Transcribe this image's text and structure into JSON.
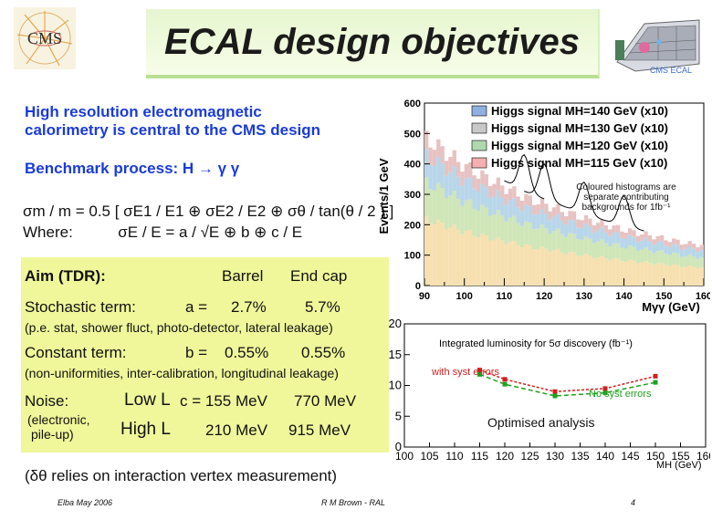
{
  "title": "ECAL design objectives",
  "ecal_caption": "CMS ECAL",
  "logo_text": "CMS",
  "intro": [
    "High resolution electromagnetic",
    "calorimetry is central to the CMS design"
  ],
  "benchmark": "Benchmark process: H → γ γ",
  "formula_line1": "σm / m = 0.5 [ σE1 / E1 ⊕ σE2 / E2 ⊕ σθ / tan(θ / 2 ) ]",
  "formula_where": "Where:",
  "formula_line2": "σE / E = a / √E ⊕  b ⊕ c / E",
  "aim": {
    "label": "Aim (TDR):",
    "barrel": "Barrel",
    "endcap": "End cap",
    "stochastic_label": "Stochastic term:",
    "stochastic_eq": "a =",
    "stochastic_barrel": "2.7%",
    "stochastic_endcap": "5.7%",
    "stochastic_note": "(p.e. stat, shower fluct, photo-detector, lateral leakage)",
    "constant_label": "Constant term:",
    "constant_eq": "b =",
    "constant_barrel": "0.55%",
    "constant_endcap": "0.55%",
    "constant_note": "(non-uniformities, inter-calibration, longitudinal leakage)",
    "noise_label": "Noise:",
    "noise_sub1": "(electronic,",
    "noise_sub2": "pile-up)",
    "low_label": "Low L",
    "low_eq": "c = 155 MeV",
    "low_endcap": "770 MeV",
    "high_label": "High L",
    "high_barrel": "210 MeV",
    "high_endcap": "915 MeV"
  },
  "vertex_note": "(δθ relies on interaction vertex measurement)",
  "footer": {
    "left": "Elba May 2006",
    "center": "R M Brown - RAL",
    "right": "4"
  },
  "note_coloured": [
    "Coloured histograms are",
    "separate contributing",
    "backgrounds for 1fb⁻¹"
  ],
  "optimised": "Optimised analysis",
  "chart_data": [
    {
      "type": "histogram",
      "ylabel": "Events/1 GeV",
      "xlabel": "Mγγ (GeV)",
      "xlim": [
        90,
        160
      ],
      "ylim": [
        0,
        600
      ],
      "xticks": [
        90,
        100,
        110,
        120,
        130,
        140,
        150,
        160
      ],
      "yticks": [
        0,
        100,
        200,
        300,
        400,
        500,
        600
      ],
      "legend": [
        "Higgs signal MH=140 GeV (x10)",
        "Higgs signal MH=130 GeV (x10)",
        "Higgs signal MH=120 GeV (x10)",
        "Higgs signal MH=115 GeV (x10)"
      ],
      "legend_colors": [
        "#8fb0e0",
        "#c8c8c8",
        "#b0d8b0",
        "#f4b0b0"
      ],
      "background_x": [
        90,
        95,
        100,
        105,
        110,
        115,
        120,
        125,
        130,
        135,
        140,
        145,
        150,
        155,
        160
      ],
      "background_y": [
        520,
        470,
        420,
        380,
        345,
        310,
        285,
        260,
        235,
        215,
        195,
        180,
        165,
        150,
        140
      ],
      "peaks": [
        {
          "mass": 115,
          "height": 120,
          "color": "#f4b0b0"
        },
        {
          "mass": 120,
          "height": 115,
          "color": "#b0d8b0"
        },
        {
          "mass": 130,
          "height": 105,
          "color": "#c8c8c8"
        },
        {
          "mass": 140,
          "height": 100,
          "color": "#8fb0e0"
        }
      ]
    },
    {
      "type": "line",
      "title": "Integrated luminosity for 5σ discovery (fb⁻¹)",
      "xlabel": "MH (GeV)",
      "xlim": [
        100,
        160
      ],
      "ylim": [
        0,
        20
      ],
      "xticks": [
        100,
        105,
        110,
        115,
        120,
        125,
        130,
        135,
        140,
        145,
        150,
        155,
        160
      ],
      "yticks": [
        0,
        5,
        10,
        15,
        20
      ],
      "series": [
        {
          "name": "with syst errors",
          "color": "#d02020",
          "x": [
            115,
            120,
            130,
            140,
            150
          ],
          "y": [
            12.5,
            11.0,
            9.0,
            9.5,
            11.5
          ]
        },
        {
          "name": "No syst errors",
          "color": "#20a020",
          "x": [
            115,
            120,
            130,
            140,
            150
          ],
          "y": [
            11.8,
            10.2,
            8.3,
            8.8,
            10.5
          ]
        }
      ]
    }
  ]
}
